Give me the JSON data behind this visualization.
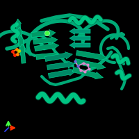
{
  "background_color": "#000000",
  "protein_color": "#00aa77",
  "protein_edge": "#00dd99",
  "helix_color": "#00cc88",
  "sheet_color": "#009966",
  "ligand_pink": "#dd88cc",
  "ligand_blue": "#6666dd",
  "metal_color": "#44ff44",
  "sm_red": "#ff2200",
  "sm_orange": "#ff8800",
  "sm_yellow": "#cccc00",
  "axis_x": "#ff3300",
  "axis_y": "#44ff44",
  "axis_z": "#3344ff",
  "fig_width": 2.0,
  "fig_height": 2.0,
  "dpi": 100
}
